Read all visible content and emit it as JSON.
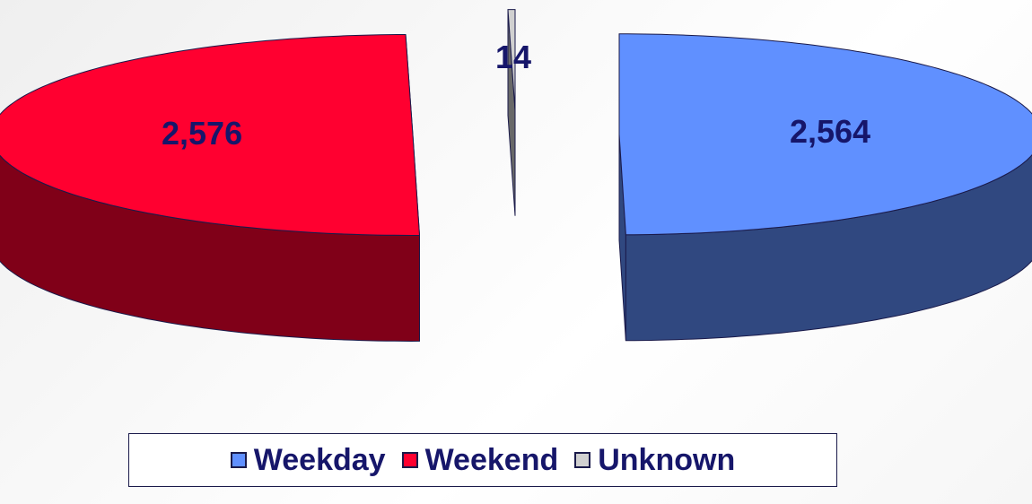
{
  "chart_data": {
    "type": "pie",
    "categories": [
      "Weekday",
      "Weekend",
      "Unknown"
    ],
    "values": [
      2564,
      2576,
      14
    ],
    "value_labels": [
      "2,564",
      "2,576",
      "14"
    ],
    "colors": [
      "#6090ff",
      "#ff0030",
      "#d0d0d0"
    ],
    "legend": "bottom"
  }
}
